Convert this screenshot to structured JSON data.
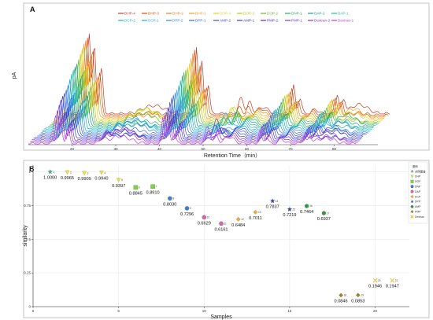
{
  "panel_a": {
    "letter": "A",
    "xlabel": "Retention Time（min）",
    "ylabel": "pA",
    "x_ticks": [
      "20",
      "30",
      "40",
      "50",
      "60",
      "70",
      "80"
    ],
    "legend": [
      {
        "label": "DHP-4",
        "color": "#c0392b"
      },
      {
        "label": "DHP-3",
        "color": "#d35400"
      },
      {
        "label": "DHP-2",
        "color": "#e67e22"
      },
      {
        "label": "DHP-1",
        "color": "#e8a317"
      },
      {
        "label": "DOP-4",
        "color": "#e6d21e"
      },
      {
        "label": "DOP-3",
        "color": "#b5cc18"
      },
      {
        "label": "DOP-2",
        "color": "#6ab82a"
      },
      {
        "label": "DNP-1",
        "color": "#27ae60"
      },
      {
        "label": "DAP-2",
        "color": "#16a085"
      },
      {
        "label": "DAP-1",
        "color": "#1abc9c"
      },
      {
        "label": "DCP-2",
        "color": "#17b3c8"
      },
      {
        "label": "DCP-1",
        "color": "#2aa7df"
      },
      {
        "label": "DPP-2",
        "color": "#2e86de"
      },
      {
        "label": "DPP-1",
        "color": "#3867d6"
      },
      {
        "label": "AMP-2",
        "color": "#3a4fd0"
      },
      {
        "label": "AMP-1",
        "color": "#3c40c6"
      },
      {
        "label": "PMP-2",
        "color": "#4834d4"
      },
      {
        "label": "PMP-1",
        "color": "#6c3fd0"
      },
      {
        "label": "Dextran-2",
        "color": "#9b2fc8"
      },
      {
        "label": "Dextran-1",
        "color": "#c03ce0"
      }
    ]
  },
  "panel_b": {
    "letter": "B",
    "legend_title": "图例",
    "legend": [
      {
        "label": "对照图谱",
        "color": "#3fbf7f",
        "shape": "star"
      },
      {
        "label": "DHP",
        "color": "#e8e04a",
        "shape": "arrow"
      },
      {
        "label": "DOP",
        "color": "#7fd04a",
        "shape": "square"
      },
      {
        "label": "DNP",
        "color": "#3d7fd6",
        "shape": "circle"
      },
      {
        "label": "DAP",
        "color": "#e060b0",
        "shape": "circle"
      },
      {
        "label": "DCP",
        "color": "#f0b030",
        "shape": "diamond"
      },
      {
        "label": "DPP",
        "color": "#3a4bb0",
        "shape": "star"
      },
      {
        "label": "AMP",
        "color": "#2f9a3f",
        "shape": "hex"
      },
      {
        "label": "PMP",
        "color": "#a08030",
        "shape": "diamond"
      },
      {
        "label": "Dextran",
        "color": "#f0c040",
        "shape": "cross"
      }
    ]
  },
  "chart_data": [
    {
      "type": "line",
      "title": "",
      "xlabel": "Retention Time（min）",
      "ylabel": "pA",
      "xlim": [
        10,
        90
      ],
      "x_ticks": [
        20,
        30,
        40,
        50,
        60,
        70,
        80
      ],
      "series": [
        {
          "name": "DHP-4"
        },
        {
          "name": "DHP-3"
        },
        {
          "name": "DHP-2"
        },
        {
          "name": "DHP-1"
        },
        {
          "name": "DOP-4"
        },
        {
          "name": "DOP-3"
        },
        {
          "name": "DOP-2"
        },
        {
          "name": "DNP-1"
        },
        {
          "name": "DAP-2"
        },
        {
          "name": "DAP-1"
        },
        {
          "name": "DCP-2"
        },
        {
          "name": "DCP-1"
        },
        {
          "name": "DPP-2"
        },
        {
          "name": "DPP-1"
        },
        {
          "name": "AMP-2"
        },
        {
          "name": "AMP-1"
        },
        {
          "name": "PMP-2"
        },
        {
          "name": "PMP-1"
        },
        {
          "name": "Dextran-2"
        },
        {
          "name": "Dextran-1"
        }
      ],
      "legend_position": "top-right",
      "grid": false
    },
    {
      "type": "scatter",
      "title": "",
      "xlabel": "Samples",
      "ylabel": "similarity",
      "xlim": [
        0,
        22
      ],
      "ylim": [
        0,
        1.05
      ],
      "x_ticks": [
        0,
        5,
        10,
        15,
        20
      ],
      "y_ticks": [
        0,
        0.25,
        0.5,
        0.75,
        1
      ],
      "grid": true,
      "legend_position": "top-right",
      "points": [
        {
          "x": 1,
          "y": 1.0,
          "label": "1.0000",
          "group": "对照图谱"
        },
        {
          "x": 2,
          "y": 0.9965,
          "label": "0.9965",
          "group": "DHP"
        },
        {
          "x": 3,
          "y": 0.9909,
          "label": "0.9909",
          "group": "DHP"
        },
        {
          "x": 4,
          "y": 0.994,
          "label": "0.9940",
          "group": "DHP"
        },
        {
          "x": 5,
          "y": 0.9397,
          "label": "0.9397",
          "group": "DHP"
        },
        {
          "x": 6,
          "y": 0.8845,
          "label": "0.8845",
          "group": "DOP"
        },
        {
          "x": 7,
          "y": 0.891,
          "label": "0.8910",
          "group": "DOP"
        },
        {
          "x": 8,
          "y": 0.803,
          "label": "0.8030",
          "group": "DNP"
        },
        {
          "x": 9,
          "y": 0.7296,
          "label": "0.7296",
          "group": "DNP"
        },
        {
          "x": 10,
          "y": 0.6629,
          "label": "0.6629",
          "group": "DAP"
        },
        {
          "x": 11,
          "y": 0.6161,
          "label": "0.6161",
          "group": "DAP"
        },
        {
          "x": 12,
          "y": 0.6484,
          "label": "0.6484",
          "group": "DCP"
        },
        {
          "x": 13,
          "y": 0.7011,
          "label": "0.7011",
          "group": "DCP"
        },
        {
          "x": 14,
          "y": 0.7837,
          "label": "0.7837",
          "group": "DPP"
        },
        {
          "x": 15,
          "y": 0.7219,
          "label": "0.7219",
          "group": "DPP"
        },
        {
          "x": 16,
          "y": 0.7464,
          "label": "0.7464",
          "group": "AMP"
        },
        {
          "x": 17,
          "y": 0.6937,
          "label": "0.6937",
          "group": "AMP"
        },
        {
          "x": 18,
          "y": 0.0846,
          "label": "0.0846",
          "group": "PMP"
        },
        {
          "x": 19,
          "y": 0.0853,
          "label": "0.0853",
          "group": "PMP"
        },
        {
          "x": 20,
          "y": 0.1946,
          "label": "0.1946",
          "group": "Dextran"
        },
        {
          "x": 21,
          "y": 0.1947,
          "label": "0.1947",
          "group": "Dextran"
        }
      ]
    }
  ]
}
